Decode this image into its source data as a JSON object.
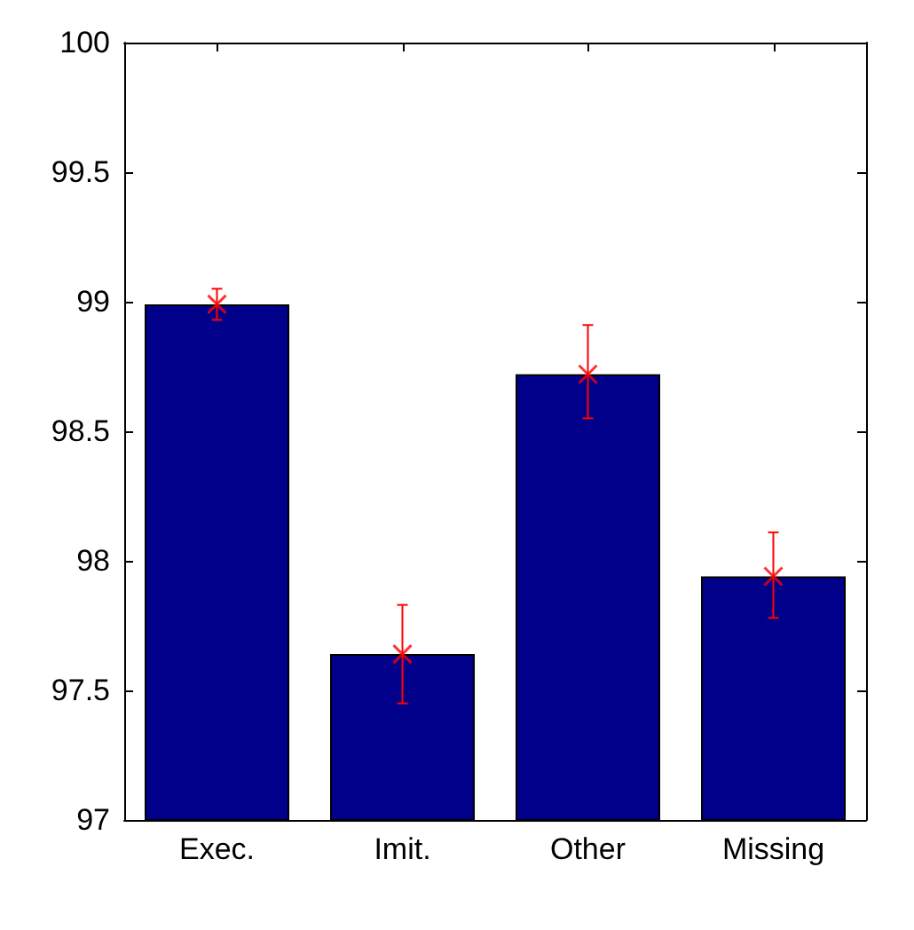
{
  "chart_data": {
    "type": "bar",
    "categories": [
      "Exec.",
      "Imit.",
      "Other",
      "Missing"
    ],
    "series": [
      {
        "color": "#00008b",
        "values": [
          98.99,
          97.64,
          98.72,
          97.94
        ]
      },
      {
        "type": "scatter",
        "color": "#ff0000",
        "x": [
          "Exec.",
          "Imit.",
          "Other",
          "Missing"
        ],
        "values": [
          98.99,
          97.64,
          98.72,
          97.94
        ],
        "errors": [
          [
            98.93,
            99.05
          ],
          [
            97.45,
            97.83
          ],
          [
            98.55,
            98.91
          ],
          [
            97.78,
            98.11
          ]
        ],
        "marker": "cross"
      }
    ],
    "ylim": [
      97,
      100
    ],
    "yticks": [
      97,
      97.5,
      98,
      98.5,
      99,
      99.5,
      100
    ],
    "grid": false
  }
}
